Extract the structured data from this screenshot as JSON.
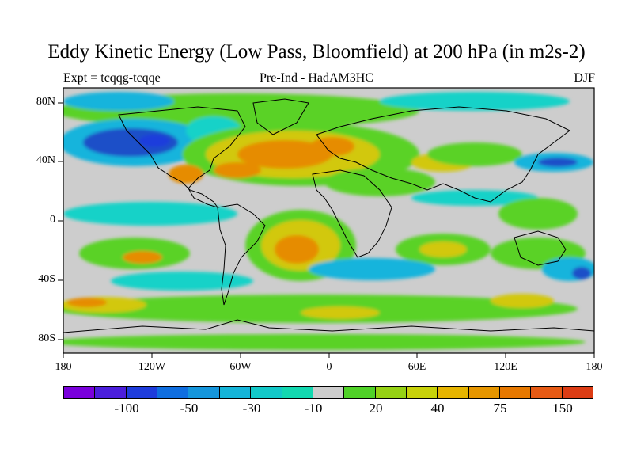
{
  "title": "Eddy Kinetic Energy (Low Pass, Bloomfield) at 200 hPa (in m2s-2)",
  "subtitle_left": "Expt = tcqqg-tcqqe",
  "subtitle_center": "Pre-Ind - HadAM3HC",
  "subtitle_right": "DJF",
  "lat_ticks": [
    "80N",
    "40N",
    "0",
    "40S",
    "80S"
  ],
  "lon_ticks": [
    "180",
    "120W",
    "60W",
    "0",
    "60E",
    "120E",
    "180"
  ],
  "colorbar": {
    "colors": [
      "#7a00dc",
      "#4b1edc",
      "#1e3cdc",
      "#0f6ee0",
      "#1596dc",
      "#14b4d8",
      "#12c8c8",
      "#12d8b0",
      "#cdcdcd",
      "#50d228",
      "#96d214",
      "#c8d20a",
      "#e6b400",
      "#e69600",
      "#e67800",
      "#e65a14",
      "#dc3c14"
    ],
    "labels": [
      "-100",
      "-50",
      "-30",
      "-10",
      "20",
      "40",
      "75",
      "150"
    ]
  },
  "colors": {
    "neutral_gray": "#cdcdcd",
    "strong_negative": "#1e50c8",
    "moderate_negative": "#14b4dc",
    "weak_negative": "#14d2c8",
    "weak_positive": "#5ad228",
    "moderate_positive": "#d2c80a",
    "strong_positive": "#e68c00",
    "very_strong_positive": "#e66414"
  }
}
